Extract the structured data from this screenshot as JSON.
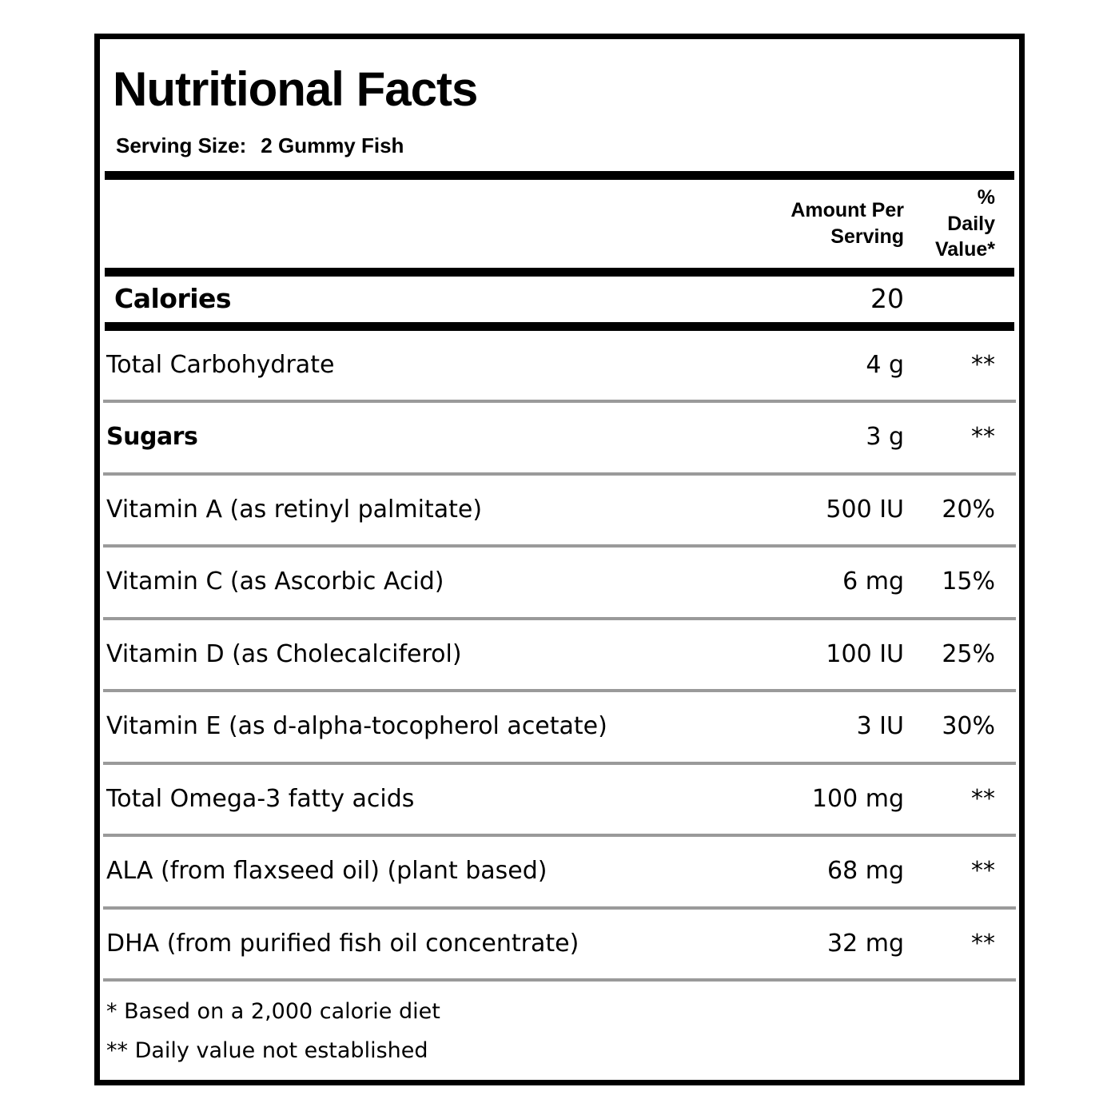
{
  "label": {
    "title": "Nutritional Facts",
    "serving": {
      "label": "Serving Size:",
      "value": "2 Gummy Fish"
    },
    "columns": {
      "amount_header": "Amount Per Serving",
      "daily_value_header": "% Daily Value*"
    },
    "calories": {
      "name": "Calories",
      "amount": "20",
      "daily_value": ""
    },
    "rows": [
      {
        "name": "Total Carbohydrate",
        "amount": "4 g",
        "daily_value": "**",
        "bold": false
      },
      {
        "name": "Sugars",
        "amount": "3 g",
        "daily_value": "**",
        "bold": true
      },
      {
        "name": "Vitamin A (as retinyl palmitate)",
        "amount": "500 IU",
        "daily_value": "20%",
        "bold": false
      },
      {
        "name": "Vitamin C (as Ascorbic Acid)",
        "amount": "6 mg",
        "daily_value": "15%",
        "bold": false
      },
      {
        "name": "Vitamin D (as Cholecalciferol)",
        "amount": "100 IU",
        "daily_value": "25%",
        "bold": false
      },
      {
        "name": "Vitamin E (as d-alpha-tocopherol acetate)",
        "amount": "3 IU",
        "daily_value": "30%",
        "bold": false
      },
      {
        "name": "Total Omega-3 fatty acids",
        "amount": "100 mg",
        "daily_value": "**",
        "bold": false
      },
      {
        "name": "ALA (from flaxseed oil) (plant based)",
        "amount": "68 mg",
        "daily_value": "**",
        "bold": false
      },
      {
        "name": "DHA (from purified fish oil concentrate)",
        "amount": "32 mg",
        "daily_value": "**",
        "bold": false
      }
    ],
    "footnotes": [
      "* Based on a 2,000 calorie diet",
      "** Daily value not established"
    ],
    "colors": {
      "text": "#000000",
      "thick_rule": "#000000",
      "thin_rule": "#9a9a9a",
      "background": "#ffffff",
      "border": "#000000"
    }
  }
}
